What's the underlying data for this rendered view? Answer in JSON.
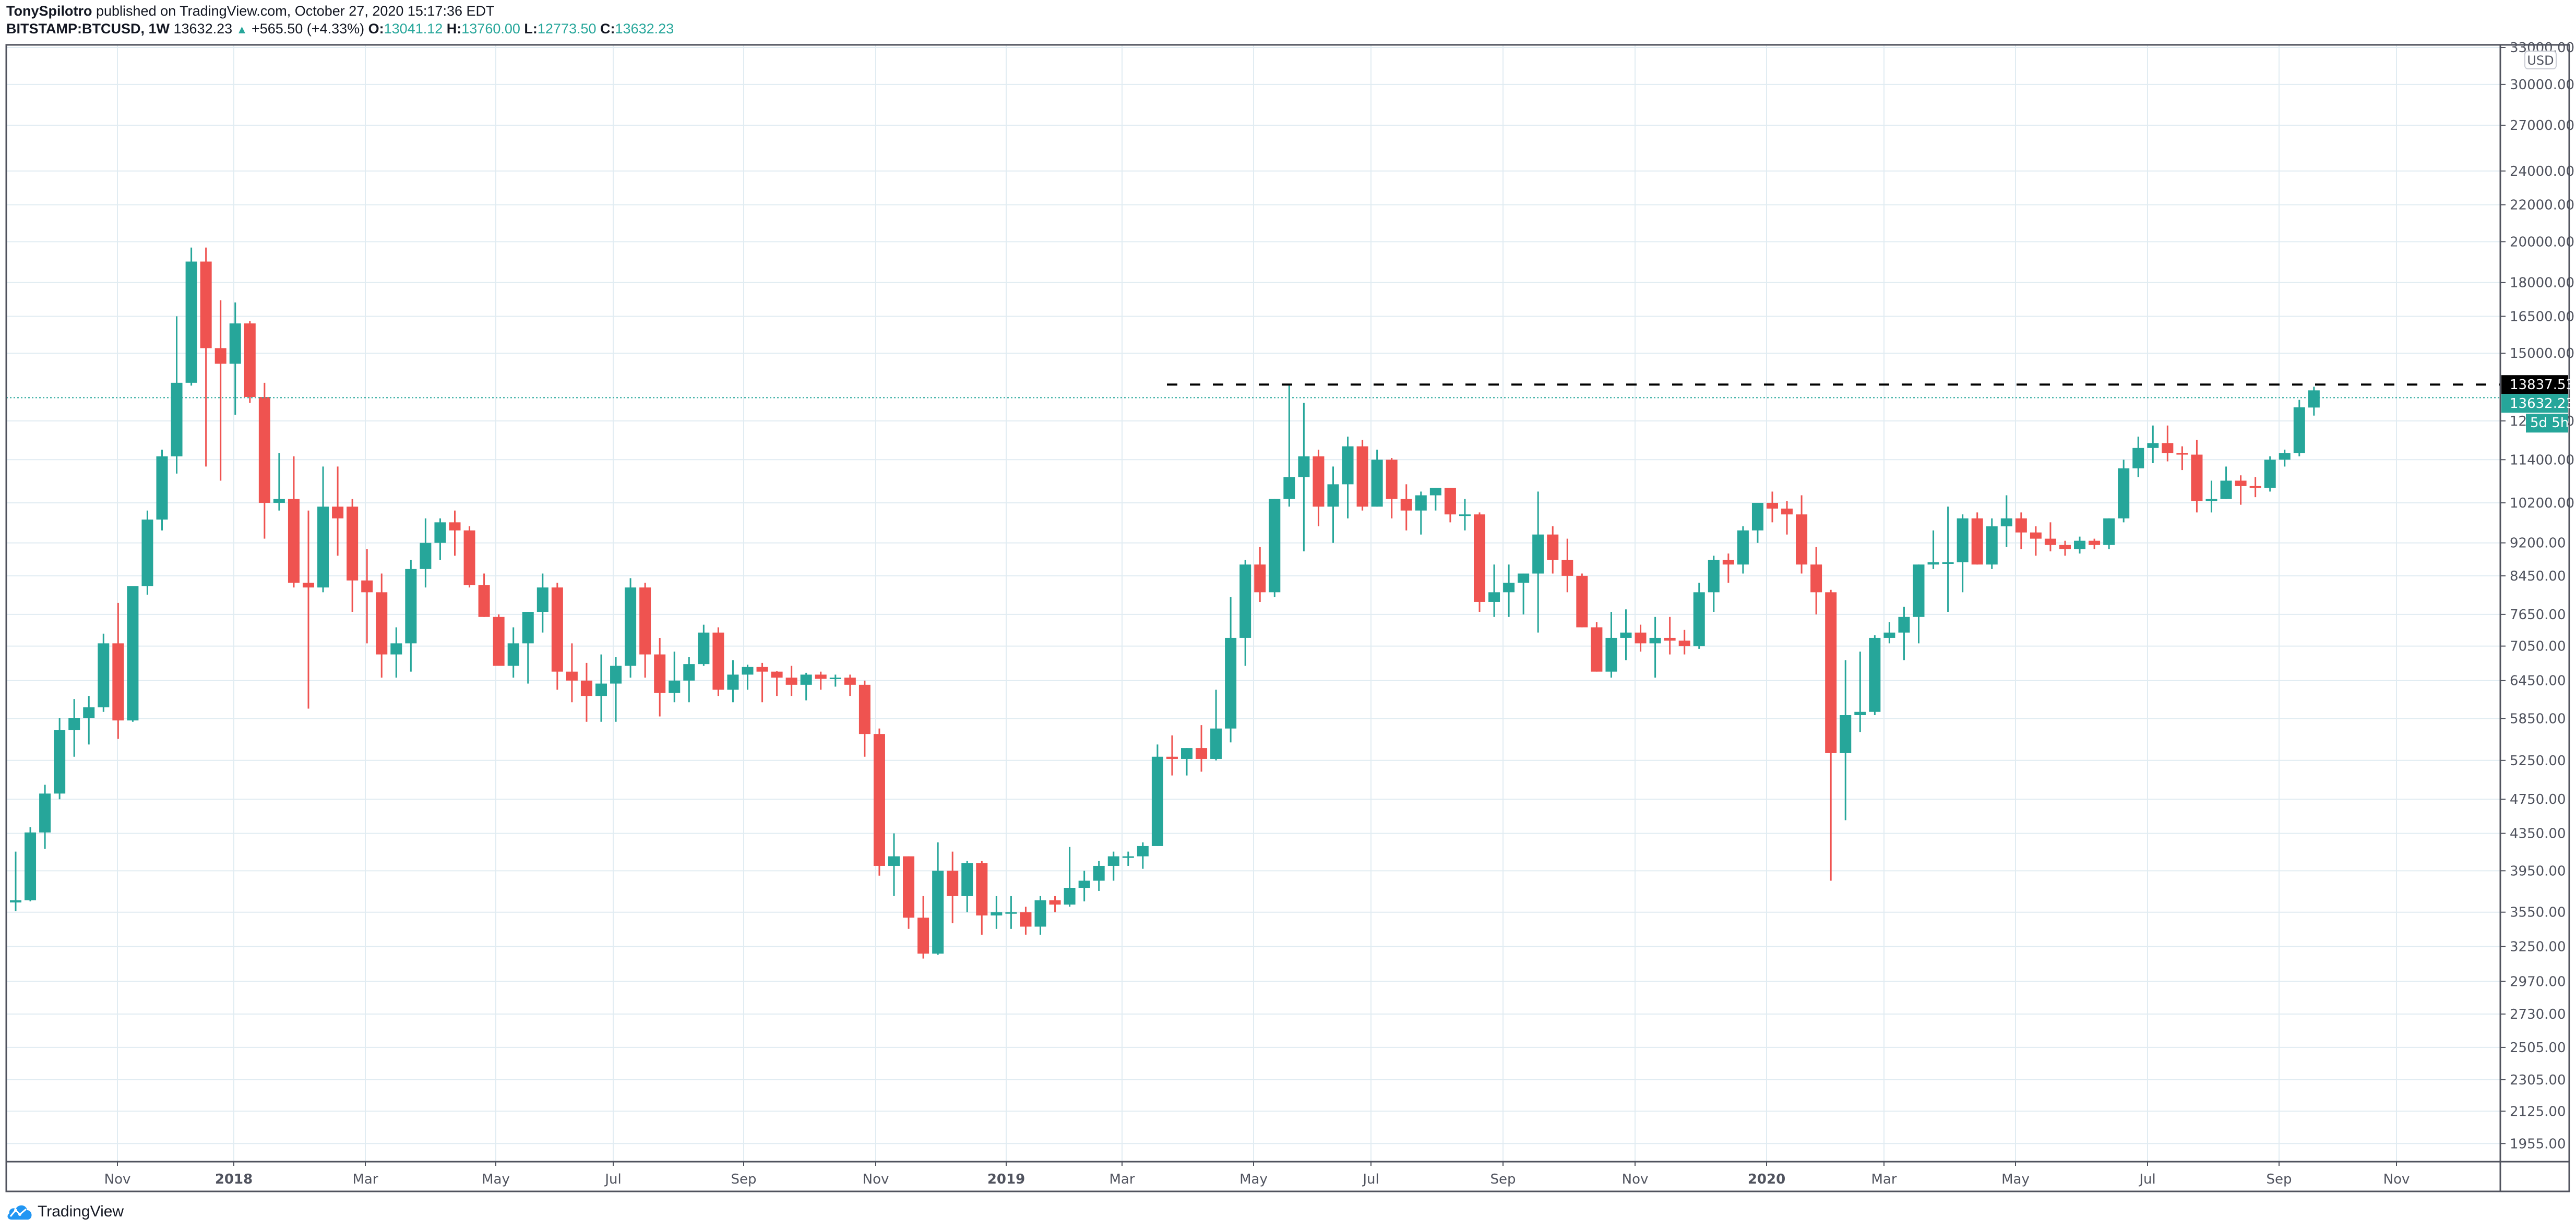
{
  "header": {
    "author": "TonySpilotro",
    "published": "published on TradingView.com, October 27, 2020 15:17:36 EDT",
    "symbol": "BITSTAMP:BTCUSD, 1W",
    "last": "13632.23",
    "change": "+565.50 (+4.33%)",
    "o_label": "O:",
    "o": "13041.12",
    "h_label": "H:",
    "h": "13760.00",
    "l_label": "L:",
    "l": "12773.50",
    "c_label": "C:",
    "c": "13632.23"
  },
  "footer": {
    "brand": "TradingView"
  },
  "colors": {
    "up": "#26a69a",
    "down": "#ef5350",
    "grid": "#e1ecf2",
    "axis": "#50535e",
    "resistance": "#000000",
    "last_price_bg": "#26a69a",
    "resistance_label_bg": "#000000"
  },
  "chart_data": {
    "type": "candlestick",
    "title": "BITSTAMP:BTCUSD, 1W",
    "xlabel": "",
    "ylabel": "USD",
    "y_scale": "log",
    "ylim": [
      1900,
      34000
    ],
    "currency_label": "USD",
    "y_ticks": [
      33000,
      30000,
      27000,
      24000,
      22000,
      20000,
      18000,
      16500,
      15000,
      12600,
      11400,
      10200,
      9200,
      8450,
      7650,
      7050,
      6450,
      5850,
      5250,
      4750,
      4350,
      3950,
      3550,
      3250,
      2970,
      2730,
      2505,
      2305,
      2125,
      1955
    ],
    "x_ticks": [
      {
        "label": "Nov",
        "x": 225
      },
      {
        "label": "2018",
        "x": 448
      },
      {
        "label": "Mar",
        "x": 700
      },
      {
        "label": "May",
        "x": 950
      },
      {
        "label": "Jul",
        "x": 1175
      },
      {
        "label": "Sep",
        "x": 1425
      },
      {
        "label": "Nov",
        "x": 1678
      },
      {
        "label": "2019",
        "x": 1928
      },
      {
        "label": "Mar",
        "x": 2150
      },
      {
        "label": "May",
        "x": 2402
      },
      {
        "label": "Jul",
        "x": 2627
      },
      {
        "label": "Sep",
        "x": 2880
      },
      {
        "label": "Nov",
        "x": 3133
      },
      {
        "label": "2020",
        "x": 3385
      },
      {
        "label": "Mar",
        "x": 3610
      },
      {
        "label": "May",
        "x": 3862
      },
      {
        "label": "Jul",
        "x": 4115
      },
      {
        "label": "Sep",
        "x": 4367
      },
      {
        "label": "Nov",
        "x": 4592
      }
    ],
    "annotations": {
      "resistance_line": {
        "price": 13837.53,
        "label": "13837.53",
        "style": "dashed",
        "x_start": 2236
      },
      "last_price": {
        "price": 13632.23,
        "label": "13632.23",
        "style": "dotted"
      },
      "countdown": "5d 5h",
      "partial_tick": "126"
    },
    "candles": [
      [
        3640,
        4150,
        3560,
        3660
      ],
      [
        3660,
        4420,
        3650,
        4360
      ],
      [
        4360,
        4930,
        4180,
        4820
      ],
      [
        4820,
        5860,
        4750,
        5680
      ],
      [
        5680,
        6150,
        5300,
        5860
      ],
      [
        5860,
        6200,
        5470,
        6020
      ],
      [
        6020,
        7280,
        5950,
        7100
      ],
      [
        7100,
        7880,
        5550,
        5820
      ],
      [
        5820,
        8200,
        5800,
        8230
      ],
      [
        8230,
        10000,
        8050,
        9770
      ],
      [
        9770,
        11700,
        9500,
        11500
      ],
      [
        11500,
        16500,
        11000,
        13900
      ],
      [
        13900,
        19700,
        13800,
        19000
      ],
      [
        19000,
        19700,
        11200,
        15200
      ],
      [
        15200,
        17200,
        10800,
        14600
      ],
      [
        14600,
        17100,
        12800,
        16200
      ],
      [
        16200,
        16300,
        13200,
        13400
      ],
      [
        13400,
        13900,
        9300,
        10200
      ],
      [
        10200,
        11600,
        10000,
        10300
      ],
      [
        10300,
        11500,
        8200,
        8300
      ],
      [
        8300,
        10000,
        6000,
        8200
      ],
      [
        8200,
        11200,
        8100,
        10100
      ],
      [
        10100,
        11200,
        8900,
        9800
      ],
      [
        10100,
        10300,
        7700,
        8350
      ],
      [
        8350,
        9050,
        7100,
        8100
      ],
      [
        8100,
        8500,
        6500,
        6900
      ],
      [
        6900,
        7400,
        6500,
        7100
      ],
      [
        7100,
        8800,
        6600,
        8600
      ],
      [
        8600,
        9800,
        8200,
        9200
      ],
      [
        9200,
        9800,
        8800,
        9700
      ],
      [
        9700,
        10000,
        8900,
        9500
      ],
      [
        9500,
        9600,
        8200,
        8250
      ],
      [
        8250,
        8500,
        7800,
        7600
      ],
      [
        7600,
        7650,
        6700,
        6700
      ],
      [
        6700,
        7400,
        6500,
        7100
      ],
      [
        7100,
        7600,
        6400,
        7700
      ],
      [
        7700,
        8500,
        7300,
        8200
      ],
      [
        8200,
        8300,
        6300,
        6600
      ],
      [
        6600,
        7100,
        6100,
        6450
      ],
      [
        6450,
        6750,
        5800,
        6200
      ],
      [
        6200,
        6900,
        5800,
        6400
      ],
      [
        6400,
        6850,
        5800,
        6700
      ],
      [
        6700,
        8400,
        6500,
        8200
      ],
      [
        8200,
        8300,
        6500,
        6900
      ],
      [
        6900,
        7200,
        5880,
        6250
      ],
      [
        6250,
        6950,
        6100,
        6450
      ],
      [
        6450,
        6850,
        6100,
        6730
      ],
      [
        6730,
        7450,
        6700,
        7300
      ],
      [
        7300,
        7400,
        6200,
        6300
      ],
      [
        6300,
        6800,
        6100,
        6550
      ],
      [
        6550,
        6720,
        6300,
        6680
      ],
      [
        6680,
        6750,
        6100,
        6600
      ],
      [
        6600,
        6610,
        6200,
        6500
      ],
      [
        6500,
        6700,
        6200,
        6380
      ],
      [
        6380,
        6580,
        6130,
        6550
      ],
      [
        6550,
        6600,
        6300,
        6480
      ],
      [
        6480,
        6550,
        6350,
        6500
      ],
      [
        6500,
        6550,
        6200,
        6380
      ],
      [
        6380,
        6450,
        5300,
        5620
      ],
      [
        5620,
        5700,
        3900,
        4000
      ],
      [
        4000,
        4350,
        3700,
        4100
      ],
      [
        4100,
        4100,
        3400,
        3500
      ],
      [
        3500,
        3700,
        3150,
        3190
      ],
      [
        3190,
        4250,
        3180,
        3950
      ],
      [
        3950,
        4150,
        3450,
        3700
      ],
      [
        3700,
        4050,
        3550,
        4030
      ],
      [
        4030,
        4050,
        3350,
        3520
      ],
      [
        3520,
        3700,
        3400,
        3550
      ],
      [
        3550,
        3700,
        3400,
        3550
      ],
      [
        3550,
        3600,
        3350,
        3420
      ],
      [
        3420,
        3700,
        3350,
        3660
      ],
      [
        3660,
        3700,
        3550,
        3620
      ],
      [
        3620,
        4200,
        3600,
        3780
      ],
      [
        3780,
        3950,
        3650,
        3850
      ],
      [
        3850,
        4050,
        3750,
        4000
      ],
      [
        4000,
        4150,
        3850,
        4100
      ],
      [
        4100,
        4150,
        4000,
        4100
      ],
      [
        4100,
        4250,
        3970,
        4210
      ],
      [
        4210,
        5470,
        5100,
        5300
      ],
      [
        5300,
        5600,
        5050,
        5270
      ],
      [
        5270,
        5400,
        5050,
        5420
      ],
      [
        5420,
        5750,
        5100,
        5270
      ],
      [
        5270,
        6300,
        5250,
        5700
      ],
      [
        5700,
        8000,
        5500,
        7200
      ],
      [
        7200,
        8800,
        6700,
        8700
      ],
      [
        8700,
        9100,
        7900,
        8100
      ],
      [
        8100,
        10000,
        8000,
        10300
      ],
      [
        10300,
        13800,
        10100,
        10900
      ],
      [
        10900,
        13200,
        9000,
        11500
      ],
      [
        11500,
        11700,
        9600,
        10100
      ],
      [
        10100,
        11200,
        9200,
        10700
      ],
      [
        10700,
        12100,
        9800,
        11800
      ],
      [
        11800,
        12000,
        10000,
        10100
      ],
      [
        10100,
        11700,
        10200,
        11400
      ],
      [
        11400,
        11450,
        9800,
        10300
      ],
      [
        10300,
        10700,
        9500,
        10000
      ],
      [
        10000,
        10500,
        9400,
        10400
      ],
      [
        10400,
        10600,
        10000,
        10600
      ],
      [
        10600,
        10450,
        9700,
        9900
      ],
      [
        9900,
        10300,
        9500,
        9900
      ],
      [
        9900,
        9950,
        7700,
        7900
      ],
      [
        7900,
        8700,
        7600,
        8100
      ],
      [
        8100,
        8700,
        7600,
        8300
      ],
      [
        8300,
        8450,
        7650,
        8500
      ],
      [
        8500,
        10500,
        7300,
        9400
      ],
      [
        9400,
        9600,
        8500,
        8800
      ],
      [
        8800,
        9300,
        8100,
        8450
      ],
      [
        8450,
        8500,
        7600,
        7400
      ],
      [
        7400,
        7500,
        6600,
        6600
      ],
      [
        6600,
        7700,
        6500,
        7200
      ],
      [
        7200,
        7750,
        6800,
        7300
      ],
      [
        7300,
        7450,
        6950,
        7100
      ],
      [
        7100,
        7600,
        6500,
        7200
      ],
      [
        7200,
        7600,
        6900,
        7150
      ],
      [
        7150,
        7350,
        6900,
        7050
      ],
      [
        7050,
        8300,
        7000,
        8100
      ],
      [
        8100,
        8900,
        7700,
        8800
      ],
      [
        8800,
        8950,
        8300,
        8700
      ],
      [
        8700,
        9600,
        8500,
        9500
      ],
      [
        9500,
        10100,
        9200,
        10200
      ],
      [
        10200,
        10500,
        9700,
        10050
      ],
      [
        10050,
        10250,
        9400,
        9900
      ],
      [
        9900,
        10400,
        8500,
        8700
      ],
      [
        8700,
        9100,
        7650,
        8100
      ],
      [
        8100,
        8150,
        3850,
        5350
      ],
      [
        5350,
        6800,
        4500,
        5900
      ],
      [
        5900,
        6950,
        5650,
        5950
      ],
      [
        5950,
        7250,
        5900,
        7200
      ],
      [
        7200,
        7500,
        7100,
        7300
      ],
      [
        7300,
        7800,
        6800,
        7600
      ],
      [
        7600,
        7750,
        7100,
        8700
      ],
      [
        8700,
        9500,
        8600,
        8750
      ],
      [
        8750,
        10100,
        7700,
        8750
      ],
      [
        8750,
        9900,
        8100,
        9800
      ],
      [
        9800,
        9950,
        8700,
        8700
      ],
      [
        8700,
        9800,
        8600,
        9600
      ],
      [
        9600,
        10400,
        9100,
        9800
      ],
      [
        9800,
        9950,
        9050,
        9450
      ],
      [
        9450,
        9600,
        8900,
        9300
      ],
      [
        9300,
        9700,
        9000,
        9150
      ],
      [
        9150,
        9250,
        8900,
        9050
      ],
      [
        9050,
        9350,
        8950,
        9250
      ],
      [
        9250,
        9300,
        9050,
        9150
      ],
      [
        9150,
        9600,
        9050,
        9800
      ],
      [
        9800,
        11400,
        9700,
        11150
      ],
      [
        11150,
        12100,
        10900,
        11750
      ],
      [
        11750,
        12450,
        11300,
        11900
      ],
      [
        11900,
        12450,
        11350,
        11600
      ],
      [
        11600,
        11800,
        11100,
        11550
      ],
      [
        11550,
        12000,
        9950,
        10250
      ],
      [
        10250,
        10800,
        9950,
        10300
      ],
      [
        10300,
        11200,
        10300,
        10800
      ],
      [
        10800,
        10950,
        10150,
        10650
      ],
      [
        10650,
        10900,
        10350,
        10600
      ],
      [
        10600,
        11500,
        10500,
        11400
      ],
      [
        11400,
        11700,
        11200,
        11600
      ],
      [
        11600,
        13300,
        11500,
        13050
      ],
      [
        13041,
        13760,
        12773,
        13632
      ]
    ]
  }
}
